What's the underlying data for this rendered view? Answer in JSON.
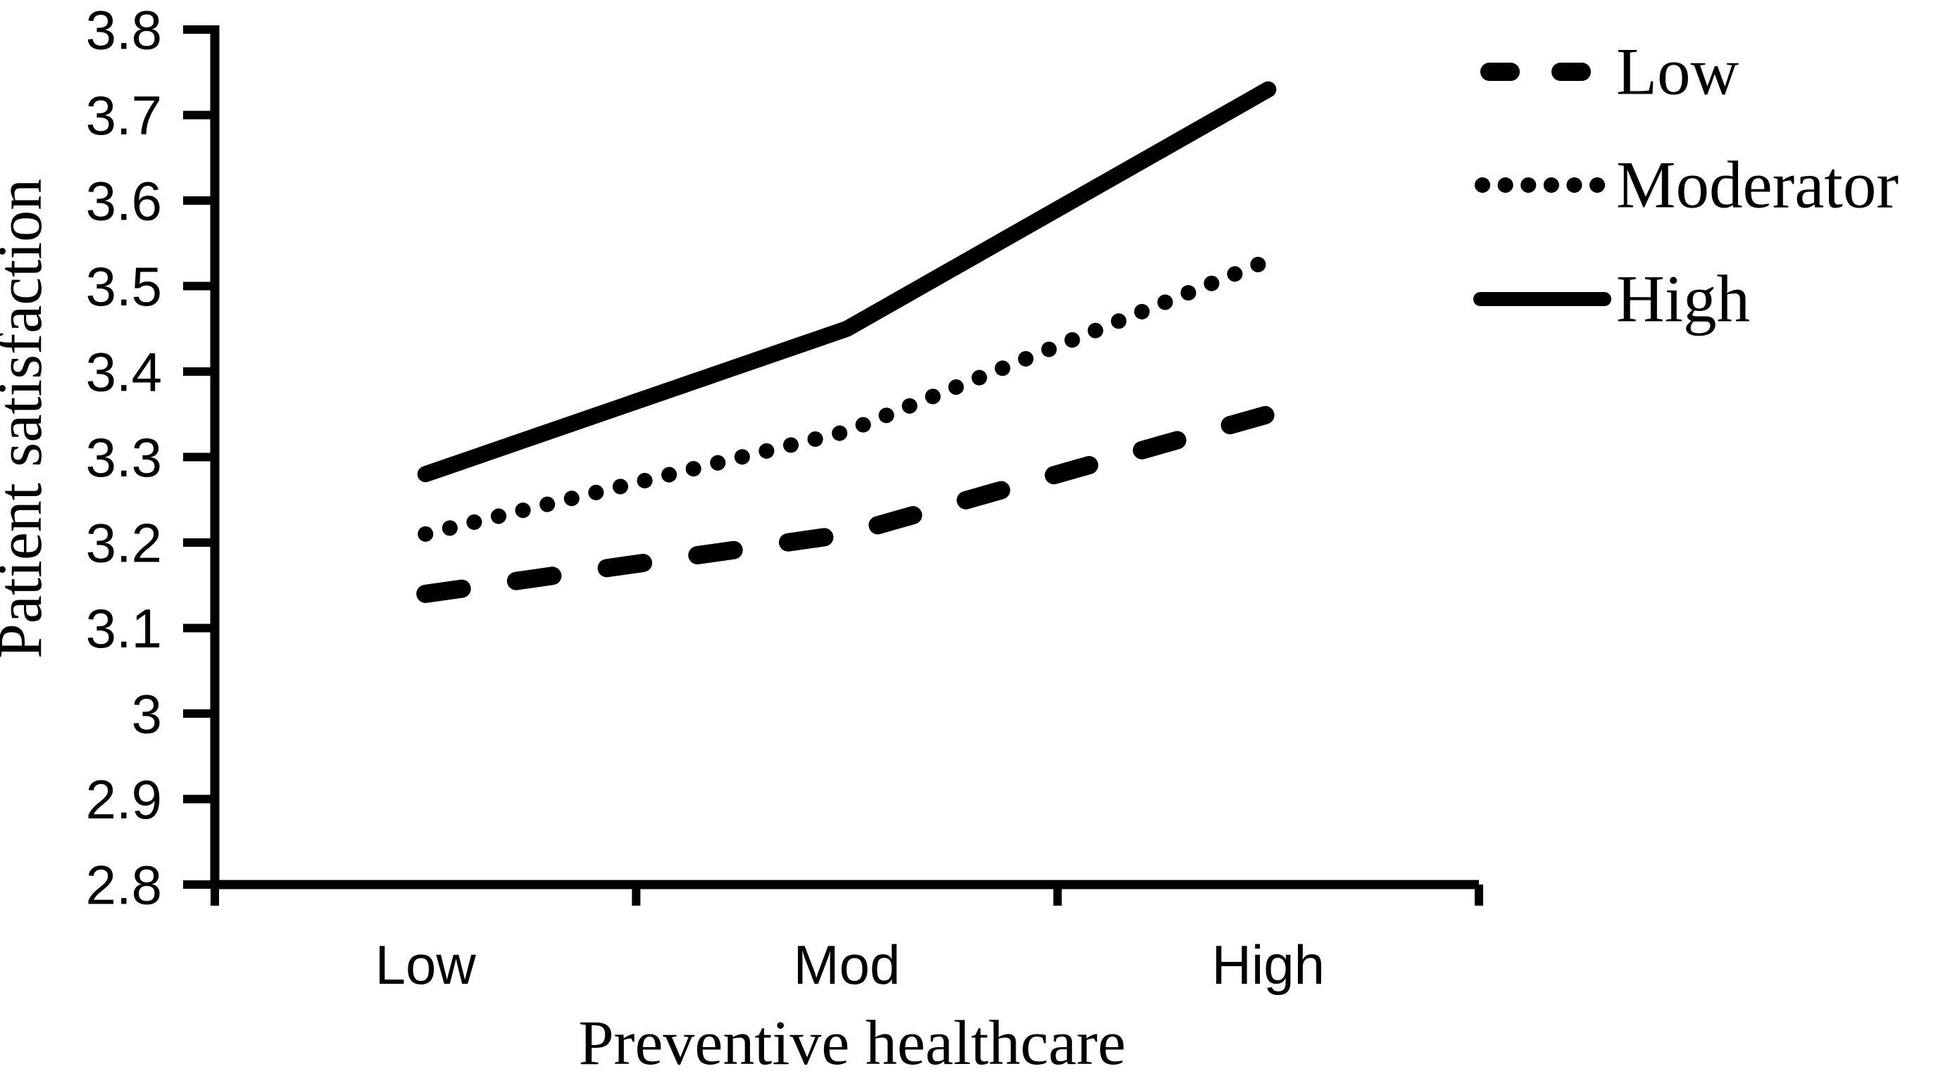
{
  "figure": {
    "background_color": "#ffffff",
    "ink_color": "#000000"
  },
  "chart_data": {
    "type": "line",
    "title": "",
    "categories": [
      "Low",
      "Mod",
      "High"
    ],
    "series": [
      {
        "name": "Low",
        "style": "dashed",
        "values": [
          3.14,
          3.21,
          3.35
        ]
      },
      {
        "name": "Moderator",
        "style": "dotted",
        "values": [
          3.21,
          3.33,
          3.53
        ]
      },
      {
        "name": "High",
        "style": "solid",
        "values": [
          3.28,
          3.45,
          3.73
        ]
      }
    ],
    "xlabel": "Preventive healthcare",
    "ylabel": "Patient satisfaction",
    "ylim": [
      2.8,
      3.8
    ],
    "ytick_step": 0.1,
    "yticks": [
      "3.8",
      "3.7",
      "3.6",
      "3.5",
      "3.4",
      "3.3",
      "3.2",
      "3.1",
      "3",
      "2.9",
      "2.8"
    ],
    "grid": false,
    "legend_position": "right-top",
    "legend_entries": [
      "Low",
      "Moderator",
      "High"
    ]
  }
}
